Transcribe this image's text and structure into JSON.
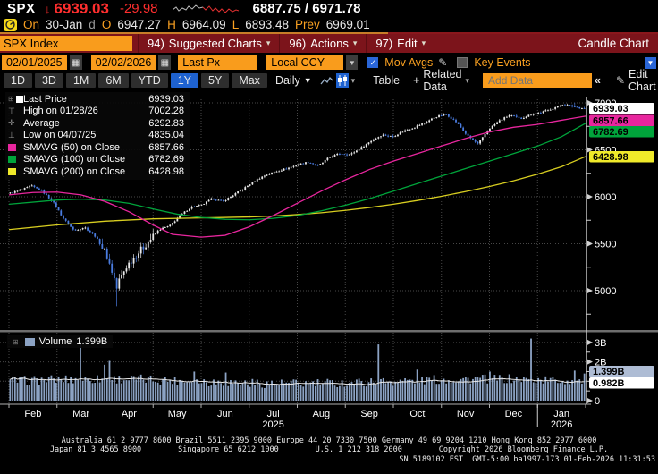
{
  "header": {
    "ticker": "SPX",
    "down_arrow": "↓",
    "last": "6939.03",
    "change": "-29.98",
    "day_range": "6887.75 / 6971.78",
    "session": {
      "on_label": "On",
      "date": "30-Jan",
      "freq": "d",
      "o_label": "O",
      "open": "6947.27",
      "h_label": "H",
      "high": "6964.09",
      "l_label": "L",
      "low": "6893.48",
      "prev_label": "Prev",
      "prev": "6969.01"
    }
  },
  "menubar": {
    "ticker_field": "SPX Index",
    "items": [
      {
        "key": "94)",
        "label": "Suggested Charts",
        "arrow": "▾"
      },
      {
        "key": "96)",
        "label": "Actions",
        "arrow": "▾"
      },
      {
        "key": "97)",
        "label": "Edit",
        "arrow": "▾"
      }
    ],
    "right": "Candle Chart"
  },
  "toolbar1": {
    "date_from": "02/01/2025",
    "dash": "-",
    "date_to": "02/02/2026",
    "px_field": "Last Px",
    "ccy_field": "Local CCY",
    "mov_avgs_label": "Mov Avgs",
    "key_events_label": "Key Events",
    "check_glyph": "✓"
  },
  "toolbar2": {
    "ranges": [
      "1D",
      "3D",
      "1M",
      "6M",
      "YTD",
      "1Y",
      "5Y",
      "Max"
    ],
    "selected_range": "1Y",
    "period_label": "Daily",
    "table_label": "Table",
    "related_label": "Related Data",
    "add_data_placeholder": "Add Data",
    "collapse_glyph": "«",
    "edit_chart_label": "Edit Chart"
  },
  "legend": {
    "rows": [
      {
        "icon": "white-square",
        "label": "Last Price",
        "value": "6939.03"
      },
      {
        "icon": "high-marker",
        "label": "High on 01/28/26",
        "value": "7002.28"
      },
      {
        "icon": "avg-marker",
        "label": "Average",
        "value": "6292.83"
      },
      {
        "icon": "low-marker",
        "label": "Low on 04/07/25",
        "value": "4835.04"
      },
      {
        "icon": "swatch-magenta",
        "label": "SMAVG (50)  on Close",
        "value": "6857.66"
      },
      {
        "icon": "swatch-green",
        "label": "SMAVG (100)  on Close",
        "value": "6782.69"
      },
      {
        "icon": "swatch-yellow",
        "label": "SMAVG (200)  on Close",
        "value": "6428.98"
      }
    ]
  },
  "volume_legend": {
    "label": "Volume",
    "value": "1.399B"
  },
  "footer": {
    "line1": "Australia 61 2 9777 8600 Brazil 5511 2395 9000 Europe 44 20 7330 7500 Germany 49 69 9204 1210 Hong Kong 852 2977 6000",
    "line2": "Japan 81 3 4565 8900        Singapore 65 6212 1000        U.S. 1 212 318 2000        Copyright 2026 Bloomberg Finance L.P.",
    "line3": "SN 5189102 EST  GMT-5:00 ba1997-173 01-Feb-2026 11:31:53"
  },
  "colors": {
    "up": "#e9e9e9",
    "down": "#4a7ce0",
    "sma50": "#e8269e",
    "sma100": "#00a43b",
    "sma200": "#d8ce20",
    "volume_bar": "#8ca3c4",
    "grid": "#474747",
    "axis": "#d0d0d0",
    "accent_orange": "#f99c1c",
    "selected_blue": "#1e62d0",
    "label_yellow": "#f0ea2a",
    "vol_hl": "#aebcd4"
  },
  "chart_data": {
    "type": "candlestick+volume",
    "symbol": "SPX Index",
    "period": "Daily",
    "range": "1Y",
    "last_close": 6939.03,
    "price_axis": {
      "ticks": [
        7000,
        6500,
        6000,
        5500,
        5000
      ],
      "minor": [
        6750,
        6250,
        5750,
        5250,
        4750
      ]
    },
    "months": [
      "Feb",
      "Mar",
      "Apr",
      "May",
      "Jun",
      "Jul",
      "Aug",
      "Sep",
      "Oct",
      "Nov",
      "Dec",
      "Jan"
    ],
    "years": [
      {
        "label": "2025",
        "month": 5
      },
      {
        "label": "2026",
        "month": 11
      }
    ],
    "weekly_closes": [
      6040,
      6070,
      6115,
      6060,
      5950,
      5770,
      5640,
      5675,
      5580,
      5400,
      5060,
      5270,
      5400,
      5520,
      5650,
      5690,
      5800,
      5890,
      5910,
      5980,
      5950,
      6020,
      6090,
      6170,
      6230,
      6270,
      6300,
      6340,
      6370,
      6330,
      6420,
      6460,
      6450,
      6520,
      6600,
      6660,
      6640,
      6700,
      6740,
      6790,
      6850,
      6880,
      6790,
      6650,
      6560,
      6720,
      6810,
      6870,
      6830,
      6880,
      6900,
      6940,
      6985,
      6960,
      6939
    ],
    "low_week": 10,
    "low_value": 4835.04,
    "high_week": 53,
    "high_value": 7002.28,
    "sma50": [
      [
        0,
        6020
      ],
      [
        0.5,
        6045
      ],
      [
        1,
        6050
      ],
      [
        1.5,
        6020
      ],
      [
        2,
        5950
      ],
      [
        2.5,
        5840
      ],
      [
        3,
        5700
      ],
      [
        3.4,
        5600
      ],
      [
        4,
        5570
      ],
      [
        4.5,
        5590
      ],
      [
        5,
        5680
      ],
      [
        5.5,
        5800
      ],
      [
        6,
        5930
      ],
      [
        6.5,
        6060
      ],
      [
        7,
        6180
      ],
      [
        7.5,
        6290
      ],
      [
        8,
        6380
      ],
      [
        8.5,
        6460
      ],
      [
        9,
        6540
      ],
      [
        9.5,
        6620
      ],
      [
        10,
        6690
      ],
      [
        10.5,
        6740
      ],
      [
        11,
        6770
      ],
      [
        11.5,
        6815
      ],
      [
        12,
        6858
      ]
    ],
    "sma100": [
      [
        0,
        5920
      ],
      [
        1,
        5965
      ],
      [
        1.5,
        5975
      ],
      [
        2,
        5965
      ],
      [
        2.5,
        5930
      ],
      [
        3,
        5870
      ],
      [
        3.5,
        5815
      ],
      [
        4,
        5780
      ],
      [
        4.5,
        5760
      ],
      [
        5,
        5755
      ],
      [
        5.5,
        5770
      ],
      [
        6,
        5800
      ],
      [
        6.5,
        5850
      ],
      [
        7,
        5910
      ],
      [
        7.5,
        5980
      ],
      [
        8,
        6060
      ],
      [
        8.5,
        6140
      ],
      [
        9,
        6220
      ],
      [
        9.5,
        6300
      ],
      [
        10,
        6380
      ],
      [
        10.5,
        6460
      ],
      [
        11,
        6540
      ],
      [
        11.5,
        6640
      ],
      [
        12,
        6783
      ]
    ],
    "sma200": [
      [
        0,
        5650
      ],
      [
        1,
        5700
      ],
      [
        2,
        5740
      ],
      [
        3,
        5765
      ],
      [
        4,
        5775
      ],
      [
        5,
        5785
      ],
      [
        5.5,
        5795
      ],
      [
        6,
        5810
      ],
      [
        6.5,
        5830
      ],
      [
        7,
        5855
      ],
      [
        7.5,
        5885
      ],
      [
        8,
        5920
      ],
      [
        8.5,
        5960
      ],
      [
        9,
        6005
      ],
      [
        9.5,
        6055
      ],
      [
        10,
        6110
      ],
      [
        10.5,
        6170
      ],
      [
        11,
        6240
      ],
      [
        11.5,
        6320
      ],
      [
        12,
        6429
      ]
    ],
    "price_marks": [
      {
        "text": "6939.03",
        "bg": "#ffffff"
      },
      {
        "text": "6857.66",
        "bg": "#e8269e"
      },
      {
        "text": "6782.69",
        "bg": "#00a43b"
      },
      {
        "text": "6428.98",
        "bg": "#f0ea2a",
        "value": 6428.98
      }
    ],
    "volume": {
      "axis_ticks": [
        {
          "label": "3B",
          "v": 3
        },
        {
          "label": "2B",
          "v": 2
        }
      ],
      "minor_ticks": [
        0.5,
        1,
        1.5,
        2.5
      ],
      "zero_label": "0",
      "last_bar": 1.399,
      "ma_end": 0.982,
      "spikes": [
        {
          "f": 0.124,
          "v": 3.05
        },
        {
          "f": 0.163,
          "v": 1.85
        },
        {
          "f": 0.174,
          "v": 2.05
        },
        {
          "f": 0.322,
          "v": 1.5
        },
        {
          "f": 0.377,
          "v": 1.45
        },
        {
          "f": 0.643,
          "v": 2.9
        },
        {
          "f": 0.707,
          "v": 1.6
        },
        {
          "f": 0.834,
          "v": 1.5
        },
        {
          "f": 0.908,
          "v": 3.2
        },
        {
          "f": 0.984,
          "v": 1.55
        }
      ],
      "marks": [
        {
          "text": "1.399B",
          "v": 1.399,
          "bg": "#aebcd4"
        },
        {
          "text": "0.982B",
          "v": 0.982,
          "bg": "#ffffff"
        }
      ]
    },
    "sparkline": {
      "gray": "0,9 4,6 7,10 11,7 15,9 18,5 22,8 26,4 30,7 34,6",
      "red": "34,6 37,9 41,5 45,10 48,7 52,11 55,8 59,12 63,8 67,11 71,9 74,10"
    }
  }
}
